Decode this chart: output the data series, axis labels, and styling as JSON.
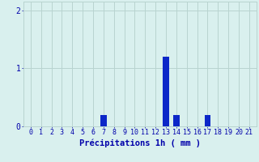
{
  "hours": [
    0,
    1,
    2,
    3,
    4,
    5,
    6,
    7,
    8,
    9,
    10,
    11,
    12,
    13,
    14,
    15,
    16,
    17,
    18,
    19,
    20,
    21
  ],
  "values": [
    0,
    0,
    0,
    0,
    0,
    0,
    0,
    0.2,
    0,
    0,
    0,
    0,
    0,
    1.2,
    0.2,
    0,
    0,
    0.2,
    0,
    0,
    0,
    0
  ],
  "bar_color": "#0c27c8",
  "background_color": "#d9f0ee",
  "grid_color": "#b8d4d0",
  "axis_color": "#0000aa",
  "xlabel": "Précipitations 1h ( mm )",
  "xlabel_fontsize": 7.5,
  "tick_fontsize": 6.0,
  "ylim": [
    0,
    2.15
  ],
  "yticks": [
    0,
    1,
    2
  ],
  "xlim": [
    -0.7,
    21.7
  ]
}
